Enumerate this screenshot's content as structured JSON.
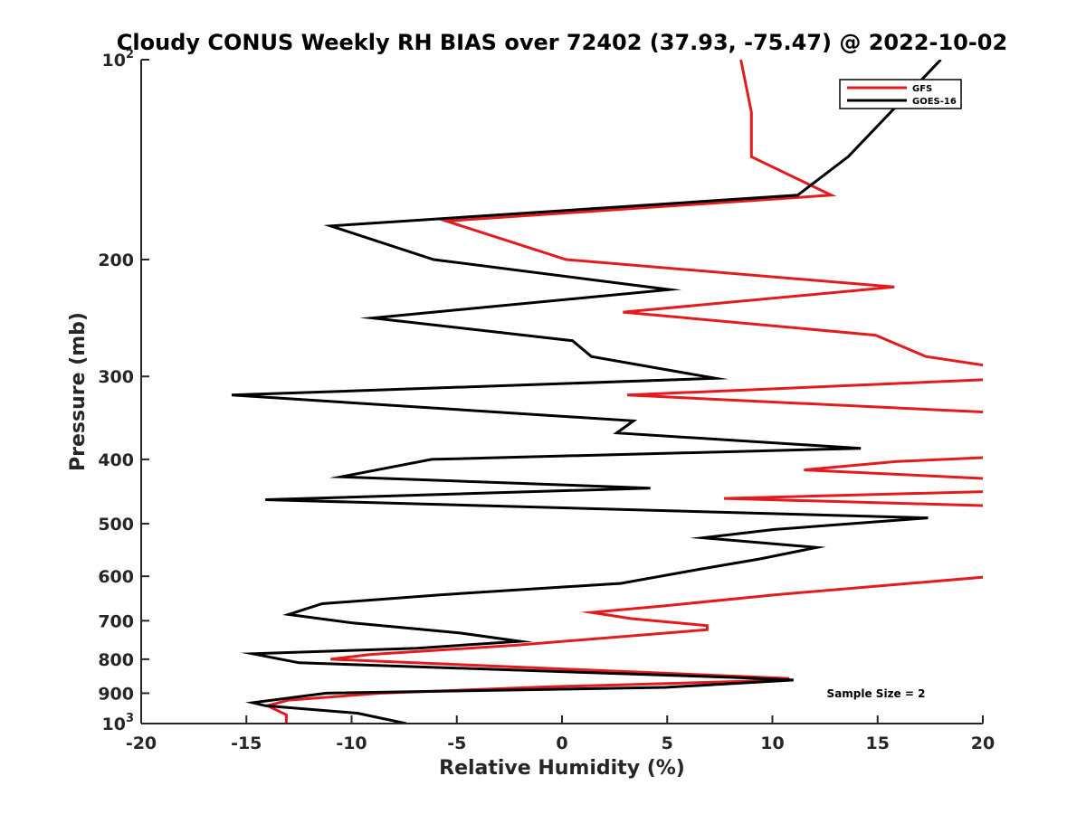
{
  "chart_data": {
    "type": "line",
    "title": "Cloudy CONUS Weekly RH BIAS over 72402 (37.93, -75.47) @ 2022-10-02",
    "xlabel": "Relative Humidity (%)",
    "ylabel": "Pressure (mb)",
    "xlim": [
      -20,
      20
    ],
    "ylim": [
      100,
      1000
    ],
    "y_scale": "log",
    "y_reversed": true,
    "grid": false,
    "legend_position": "top-right",
    "x_ticks": [
      "-20",
      "-15",
      "-10",
      "-5",
      "0",
      "5",
      "10",
      "15",
      "20"
    ],
    "y_ticks": [
      {
        "base": "10",
        "exp": "2",
        "value": 100
      },
      {
        "base": "200",
        "exp": "",
        "value": 200
      },
      {
        "base": "300",
        "exp": "",
        "value": 300
      },
      {
        "base": "400",
        "exp": "",
        "value": 400
      },
      {
        "base": "500",
        "exp": "",
        "value": 500
      },
      {
        "base": "600",
        "exp": "",
        "value": 600
      },
      {
        "base": "700",
        "exp": "",
        "value": 700
      },
      {
        "base": "800",
        "exp": "",
        "value": 800
      },
      {
        "base": "900",
        "exp": "",
        "value": 900
      },
      {
        "base": "10",
        "exp": "3",
        "value": 1000
      }
    ],
    "annotation": "Sample Size = 2",
    "series": [
      {
        "name": "GFS",
        "color": "#e41a1c",
        "points": [
          [
            8.5,
            100
          ],
          [
            9.0,
            120
          ],
          [
            9.0,
            140
          ],
          [
            12.8,
            160
          ],
          [
            -5.5,
            175
          ],
          [
            0.2,
            200
          ],
          [
            15.8,
            220
          ],
          [
            2.9,
            240
          ],
          [
            14.9,
            260
          ],
          [
            17.3,
            280
          ],
          [
            20.5,
            290
          ],
          [
            20.5,
            303
          ],
          [
            3.1,
            320
          ],
          [
            20.5,
            340
          ],
          [
            20.5,
            397
          ],
          [
            15.9,
            403
          ],
          [
            11.5,
            415
          ],
          [
            20.5,
            428
          ],
          [
            20.5,
            447
          ],
          [
            7.7,
            458
          ],
          [
            20.5,
            470
          ],
          [
            20.5,
            600
          ],
          [
            10.1,
            640
          ],
          [
            4.8,
            665
          ],
          [
            1.4,
            680
          ],
          [
            3.3,
            695
          ],
          [
            6.9,
            712
          ],
          [
            6.9,
            722
          ],
          [
            -2.2,
            762
          ],
          [
            -9.1,
            787
          ],
          [
            -11.0,
            800
          ],
          [
            10.8,
            855
          ],
          [
            9.5,
            862
          ],
          [
            -0.5,
            880
          ],
          [
            -8.6,
            900
          ],
          [
            -13.0,
            922
          ],
          [
            -14.0,
            940
          ],
          [
            -13.1,
            970
          ],
          [
            -13.1,
            1000
          ]
        ]
      },
      {
        "name": "GOES-16",
        "color": "#000000",
        "points": [
          [
            18.0,
            100
          ],
          [
            13.6,
            140
          ],
          [
            11.2,
            160
          ],
          [
            -11.0,
            178
          ],
          [
            -6.1,
            200
          ],
          [
            5.1,
            222
          ],
          [
            -9.0,
            245
          ],
          [
            0.5,
            265
          ],
          [
            1.4,
            280
          ],
          [
            7.3,
            302
          ],
          [
            -15.7,
            320
          ],
          [
            3.4,
            350
          ],
          [
            2.6,
            365
          ],
          [
            14.2,
            385
          ],
          [
            -6.2,
            400
          ],
          [
            -10.5,
            425
          ],
          [
            4.2,
            442
          ],
          [
            -14.1,
            460
          ],
          [
            17.4,
            490
          ],
          [
            10.1,
            510
          ],
          [
            6.7,
            525
          ],
          [
            12.1,
            543
          ],
          [
            9.4,
            565
          ],
          [
            6.6,
            585
          ],
          [
            2.8,
            615
          ],
          [
            -5.8,
            640
          ],
          [
            -11.4,
            660
          ],
          [
            -13.0,
            685
          ],
          [
            -10.0,
            705
          ],
          [
            -4.9,
            730
          ],
          [
            -2.0,
            752
          ],
          [
            -6.9,
            770
          ],
          [
            -14.7,
            785
          ],
          [
            -12.5,
            810
          ],
          [
            8.0,
            852
          ],
          [
            11.0,
            860
          ],
          [
            4.9,
            882
          ],
          [
            -11.2,
            900
          ],
          [
            -14.7,
            930
          ],
          [
            -14.1,
            940
          ],
          [
            -9.7,
            965
          ],
          [
            -7.4,
            1000
          ]
        ]
      }
    ]
  }
}
